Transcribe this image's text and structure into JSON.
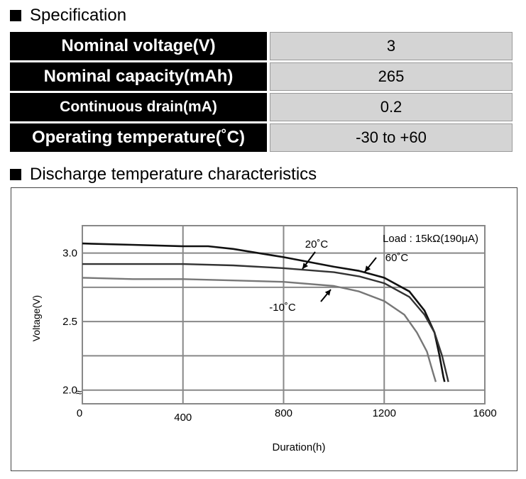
{
  "spec": {
    "title": "Specification",
    "rows": [
      {
        "label": "Nominal voltage(V)",
        "value": "3"
      },
      {
        "label": "Nominal capacity(mAh)",
        "value": "265"
      },
      {
        "label": "Continuous drain(mA)",
        "value": "0.2"
      },
      {
        "label": "Operating temperature(˚C)",
        "value": "-30 to +60"
      }
    ]
  },
  "discharge": {
    "title": "Discharge temperature characteristics"
  },
  "chart_data": {
    "type": "line",
    "xlabel": "Duration(h)",
    "ylabel": "Voltage(V)",
    "xlim": [
      0,
      1600
    ],
    "ylim": [
      1.9,
      3.2
    ],
    "axis_break": "≈",
    "x_ticks": [
      "0",
      "400",
      "800",
      "1200",
      "1600"
    ],
    "y_ticks": [
      "2.0",
      "2.5",
      "3.0"
    ],
    "grid": true,
    "annotation": "Load : 15kΩ(190μA)",
    "series": [
      {
        "name": "20˚C",
        "color": "#111111",
        "points": [
          [
            0,
            3.07
          ],
          [
            200,
            3.06
          ],
          [
            400,
            3.05
          ],
          [
            500,
            3.05
          ],
          [
            600,
            3.03
          ],
          [
            800,
            2.97
          ],
          [
            1000,
            2.9
          ],
          [
            1100,
            2.87
          ],
          [
            1200,
            2.82
          ],
          [
            1300,
            2.72
          ],
          [
            1360,
            2.58
          ],
          [
            1400,
            2.42
          ],
          [
            1420,
            2.25
          ],
          [
            1435,
            2.1
          ],
          [
            1440,
            2.06
          ]
        ]
      },
      {
        "name": "60˚C",
        "color": "#333333",
        "points": [
          [
            0,
            2.92
          ],
          [
            200,
            2.92
          ],
          [
            400,
            2.92
          ],
          [
            600,
            2.91
          ],
          [
            800,
            2.89
          ],
          [
            1000,
            2.86
          ],
          [
            1100,
            2.83
          ],
          [
            1200,
            2.78
          ],
          [
            1300,
            2.68
          ],
          [
            1360,
            2.55
          ],
          [
            1400,
            2.42
          ],
          [
            1430,
            2.25
          ],
          [
            1450,
            2.1
          ],
          [
            1455,
            2.06
          ]
        ]
      },
      {
        "name": "-10˚C",
        "color": "#777777",
        "points": [
          [
            0,
            2.82
          ],
          [
            200,
            2.81
          ],
          [
            400,
            2.81
          ],
          [
            600,
            2.8
          ],
          [
            800,
            2.79
          ],
          [
            1000,
            2.76
          ],
          [
            1100,
            2.72
          ],
          [
            1200,
            2.65
          ],
          [
            1280,
            2.55
          ],
          [
            1330,
            2.42
          ],
          [
            1370,
            2.28
          ],
          [
            1395,
            2.12
          ],
          [
            1405,
            2.06
          ]
        ]
      }
    ],
    "labels": [
      {
        "text": "20˚C",
        "series": "20˚C"
      },
      {
        "text": "60˚C",
        "series": "60˚C"
      },
      {
        "text": "-10˚C",
        "series": "-10˚C"
      }
    ]
  }
}
